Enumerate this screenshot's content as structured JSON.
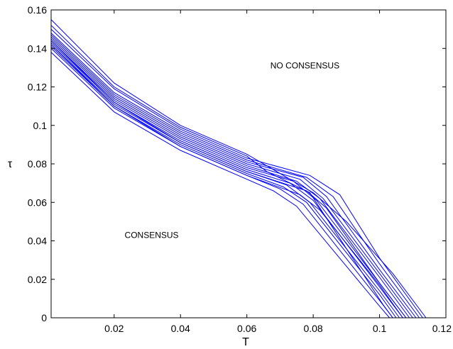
{
  "chart_data": {
    "type": "line",
    "title": "",
    "xlabel": "T",
    "ylabel": "τ",
    "xlim": [
      0.001,
      0.12
    ],
    "ylim": [
      0,
      0.16
    ],
    "xticks": [
      0.02,
      0.04,
      0.06,
      0.08,
      0.1,
      0.12
    ],
    "xtick_labels": [
      "0.02",
      "0.04",
      "0.06",
      "0.08",
      "0.1",
      "0.12"
    ],
    "yticks": [
      0,
      0.02,
      0.04,
      0.06,
      0.08,
      0.1,
      0.12,
      0.14,
      0.16
    ],
    "ytick_labels": [
      "0",
      "0.02",
      "0.04",
      "0.06",
      "0.08",
      "0.1",
      "0.12",
      "0.14",
      "0.16"
    ],
    "grid": false,
    "legend": "none",
    "line_color": "#0000ff",
    "annotations": [
      {
        "text": "NO CONSENSUS",
        "x": 0.0775,
        "y": 0.1295
      },
      {
        "text": "CONSENSUS",
        "x": 0.0313,
        "y": 0.0415
      }
    ],
    "series": [
      {
        "x": [
          0.001,
          0.02,
          0.04,
          0.06,
          0.068,
          0.075,
          0.1,
          0.103
        ],
        "y": [
          0.138,
          0.107,
          0.087,
          0.072,
          0.066,
          0.058,
          0.006,
          0
        ]
      },
      {
        "x": [
          0.001,
          0.02,
          0.04,
          0.06,
          0.07,
          0.077,
          0.1,
          0.104
        ],
        "y": [
          0.14,
          0.109,
          0.089,
          0.074,
          0.067,
          0.059,
          0.009,
          0
        ]
      },
      {
        "x": [
          0.001,
          0.02,
          0.04,
          0.06,
          0.071,
          0.078,
          0.1,
          0.105
        ],
        "y": [
          0.141,
          0.11,
          0.09,
          0.075,
          0.068,
          0.06,
          0.012,
          0
        ]
      },
      {
        "x": [
          0.001,
          0.02,
          0.04,
          0.06,
          0.072,
          0.079,
          0.1,
          0.106
        ],
        "y": [
          0.142,
          0.111,
          0.091,
          0.076,
          0.069,
          0.06,
          0.014,
          0
        ]
      },
      {
        "x": [
          0.001,
          0.02,
          0.04,
          0.06,
          0.073,
          0.08,
          0.1,
          0.107
        ],
        "y": [
          0.143,
          0.112,
          0.092,
          0.077,
          0.07,
          0.061,
          0.016,
          0
        ]
      },
      {
        "x": [
          0.001,
          0.02,
          0.04,
          0.06,
          0.074,
          0.081,
          0.1,
          0.108
        ],
        "y": [
          0.144,
          0.113,
          0.093,
          0.078,
          0.071,
          0.061,
          0.018,
          0
        ]
      },
      {
        "x": [
          0.001,
          0.02,
          0.04,
          0.06,
          0.075,
          0.082,
          0.1,
          0.109
        ],
        "y": [
          0.145,
          0.114,
          0.094,
          0.079,
          0.071,
          0.062,
          0.021,
          0
        ]
      },
      {
        "x": [
          0.001,
          0.02,
          0.04,
          0.06,
          0.076,
          0.083,
          0.1,
          0.11
        ],
        "y": [
          0.146,
          0.115,
          0.095,
          0.08,
          0.072,
          0.062,
          0.023,
          0
        ]
      },
      {
        "x": [
          0.001,
          0.02,
          0.04,
          0.06,
          0.077,
          0.084,
          0.1,
          0.111
        ],
        "y": [
          0.147,
          0.116,
          0.096,
          0.081,
          0.073,
          0.063,
          0.025,
          0
        ]
      },
      {
        "x": [
          0.001,
          0.02,
          0.04,
          0.06,
          0.078,
          0.086,
          0.1,
          0.112
        ],
        "y": [
          0.148,
          0.117,
          0.097,
          0.082,
          0.073,
          0.063,
          0.028,
          0
        ]
      },
      {
        "x": [
          0.001,
          0.02,
          0.04,
          0.06,
          0.079,
          0.088,
          0.1,
          0.113
        ],
        "y": [
          0.15,
          0.119,
          0.098,
          0.083,
          0.074,
          0.064,
          0.031,
          0
        ]
      },
      {
        "x": [
          0.001,
          0.02,
          0.04,
          0.06,
          0.066,
          0.079,
          0.101,
          0.104
        ],
        "y": [
          0.152,
          0.12,
          0.099,
          0.084,
          0.076,
          0.065,
          0.007,
          0
        ]
      },
      {
        "x": [
          0.001,
          0.02,
          0.04,
          0.06,
          0.08,
          0.09,
          0.104,
          0.114
        ],
        "y": [
          0.155,
          0.122,
          0.1,
          0.085,
          0.065,
          0.05,
          0.023,
          0
        ]
      },
      {
        "x": [
          0.001,
          0.02,
          0.04,
          0.06,
          0.078,
          0.084,
          0.1,
          0.108
        ],
        "y": [
          0.144,
          0.112,
          0.091,
          0.076,
          0.066,
          0.057,
          0.018,
          0
        ]
      },
      {
        "x": [
          0.001,
          0.02,
          0.04,
          0.06,
          0.076,
          0.082,
          0.1,
          0.107
        ],
        "y": [
          0.142,
          0.11,
          0.089,
          0.074,
          0.064,
          0.056,
          0.017,
          0
        ]
      }
    ]
  }
}
